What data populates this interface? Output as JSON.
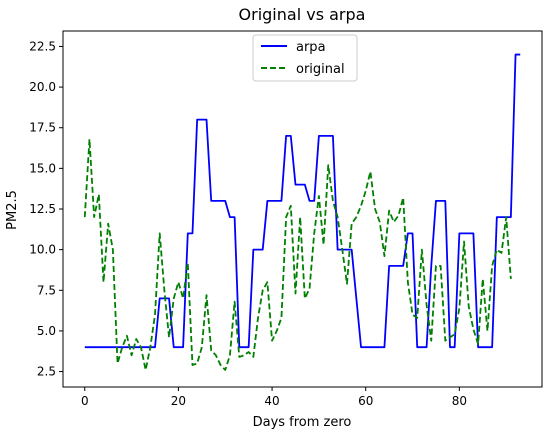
{
  "chart_data": {
    "type": "line",
    "title": "Original vs arpa",
    "xlabel": "Days from zero",
    "ylabel": "PM2.5",
    "xlim": [
      -4.65,
      97.65
    ],
    "ylim": [
      1.55,
      23.45
    ],
    "xticks": [
      0,
      20,
      40,
      60,
      80
    ],
    "yticks": [
      2.5,
      5.0,
      7.5,
      10.0,
      12.5,
      15.0,
      17.5,
      20.0,
      22.5
    ],
    "ytick_labels": [
      "2.5",
      "5.0",
      "7.5",
      "10.0",
      "12.5",
      "15.0",
      "17.5",
      "20.0",
      "22.5"
    ],
    "grid": false,
    "legend_position": "top-center",
    "series": [
      {
        "name": "arpa",
        "color": "#0000ff",
        "dash": "solid",
        "values": [
          4,
          4,
          4,
          4,
          4,
          4,
          4,
          4,
          4,
          4,
          4,
          4,
          4,
          4,
          4,
          4,
          7,
          7,
          7,
          4,
          4,
          4,
          11,
          11,
          18,
          18,
          18,
          13,
          13,
          13,
          13,
          12,
          12,
          4,
          4,
          4,
          10,
          10,
          10,
          13,
          13,
          13,
          13,
          17,
          17,
          14,
          14,
          14,
          13,
          13,
          17,
          17,
          17,
          17,
          10,
          10,
          10,
          10,
          7,
          4,
          4,
          4,
          4,
          4,
          4,
          9,
          9,
          9,
          9,
          11,
          11,
          4,
          4,
          4,
          9,
          13,
          13,
          13,
          4,
          4,
          11,
          11,
          11,
          11,
          4,
          4,
          4,
          4,
          12,
          12,
          12,
          12,
          22,
          22
        ]
      },
      {
        "name": "original",
        "color": "#008000",
        "dash": "dashed",
        "values": [
          12.0,
          16.8,
          12.0,
          13.4,
          8.0,
          11.6,
          10.0,
          3.0,
          4.0,
          4.7,
          3.5,
          4.5,
          4.0,
          2.6,
          4.0,
          6.0,
          11.0,
          7.5,
          4.6,
          7.0,
          8.0,
          7.0,
          9.2,
          2.9,
          3.0,
          4.0,
          7.2,
          3.8,
          3.5,
          2.9,
          2.6,
          3.5,
          6.8,
          3.4,
          3.5,
          3.7,
          3.4,
          5.8,
          7.5,
          8.0,
          4.4,
          5.0,
          5.8,
          12.0,
          12.7,
          7.3,
          12.0,
          7.0,
          7.6,
          11.0,
          13.3,
          10.3,
          15.2,
          13.0,
          12.0,
          10.0,
          7.9,
          11.6,
          12.0,
          12.7,
          13.6,
          14.8,
          12.5,
          11.7,
          9.6,
          12.4,
          11.7,
          12.1,
          13.2,
          8.0,
          6.0,
          5.8,
          10.0,
          6.6,
          4.4,
          9.0,
          9.0,
          4.4,
          4.6,
          4.8,
          6.4,
          10.5,
          6.5,
          5.1,
          4.2,
          8.2,
          5.0,
          9.0,
          10.0,
          9.8,
          12.0,
          8.2
        ]
      }
    ]
  }
}
